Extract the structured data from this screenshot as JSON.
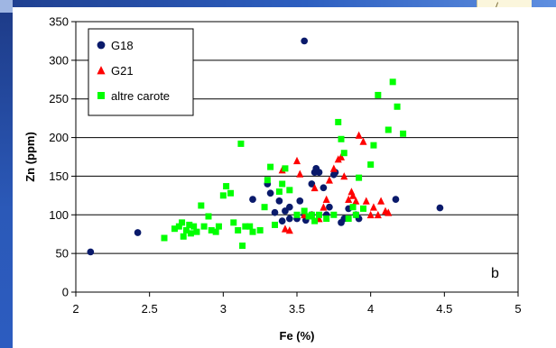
{
  "chart_data": {
    "type": "scatter",
    "xlabel": "Fe (%)",
    "ylabel": "Zn (ppm)",
    "xlim": [
      2,
      5
    ],
    "ylim": [
      0,
      350
    ],
    "xticks": [
      "2",
      "2.5",
      "3",
      "3.5",
      "4",
      "4.5",
      "5"
    ],
    "yticks": [
      "0",
      "50",
      "100",
      "150",
      "200",
      "250",
      "300",
      "350"
    ],
    "grid": "horizontal",
    "legend": "top-left",
    "annotation": "b",
    "series": [
      {
        "name": "G18",
        "marker": "circle",
        "color": "#0a1a6b",
        "points": [
          [
            2.1,
            52
          ],
          [
            2.42,
            77
          ],
          [
            3.55,
            325
          ],
          [
            3.2,
            120
          ],
          [
            3.3,
            140
          ],
          [
            3.32,
            128
          ],
          [
            3.35,
            103
          ],
          [
            3.38,
            118
          ],
          [
            3.4,
            92
          ],
          [
            3.42,
            105
          ],
          [
            3.45,
            110
          ],
          [
            3.45,
            95
          ],
          [
            3.5,
            95
          ],
          [
            3.52,
            118
          ],
          [
            3.55,
            100
          ],
          [
            3.56,
            93
          ],
          [
            3.6,
            140
          ],
          [
            3.6,
            100
          ],
          [
            3.62,
            155
          ],
          [
            3.63,
            160
          ],
          [
            3.65,
            155
          ],
          [
            3.68,
            135
          ],
          [
            3.7,
            100
          ],
          [
            3.72,
            110
          ],
          [
            3.75,
            152
          ],
          [
            3.76,
            155
          ],
          [
            3.8,
            90
          ],
          [
            3.82,
            95
          ],
          [
            3.85,
            108
          ],
          [
            3.9,
            100
          ],
          [
            3.92,
            95
          ],
          [
            4.17,
            120
          ],
          [
            4.47,
            109
          ]
        ]
      },
      {
        "name": "G21",
        "marker": "triangle",
        "color": "#ff0000",
        "points": [
          [
            3.4,
            158
          ],
          [
            3.42,
            82
          ],
          [
            3.45,
            80
          ],
          [
            3.5,
            170
          ],
          [
            3.52,
            153
          ],
          [
            3.55,
            100
          ],
          [
            3.6,
            100
          ],
          [
            3.62,
            135
          ],
          [
            3.65,
            95
          ],
          [
            3.68,
            110
          ],
          [
            3.7,
            120
          ],
          [
            3.72,
            145
          ],
          [
            3.75,
            160
          ],
          [
            3.78,
            172
          ],
          [
            3.8,
            175
          ],
          [
            3.82,
            150
          ],
          [
            3.85,
            120
          ],
          [
            3.87,
            130
          ],
          [
            3.88,
            125
          ],
          [
            3.9,
            118
          ],
          [
            3.92,
            203
          ],
          [
            3.95,
            195
          ],
          [
            3.97,
            118
          ],
          [
            4.0,
            100
          ],
          [
            4.02,
            110
          ],
          [
            4.05,
            100
          ],
          [
            4.07,
            118
          ],
          [
            4.1,
            105
          ],
          [
            4.12,
            103
          ]
        ]
      },
      {
        "name": "altre carote",
        "marker": "square",
        "color": "#00ff00",
        "points": [
          [
            2.6,
            70
          ],
          [
            2.67,
            82
          ],
          [
            2.7,
            85
          ],
          [
            2.72,
            90
          ],
          [
            2.73,
            72
          ],
          [
            2.75,
            80
          ],
          [
            2.77,
            87
          ],
          [
            2.78,
            76
          ],
          [
            2.8,
            85
          ],
          [
            2.82,
            78
          ],
          [
            2.85,
            112
          ],
          [
            2.87,
            85
          ],
          [
            2.9,
            98
          ],
          [
            2.92,
            80
          ],
          [
            2.95,
            78
          ],
          [
            2.97,
            85
          ],
          [
            3.0,
            125
          ],
          [
            3.02,
            137
          ],
          [
            3.05,
            128
          ],
          [
            3.07,
            90
          ],
          [
            3.1,
            80
          ],
          [
            3.12,
            192
          ],
          [
            3.13,
            60
          ],
          [
            3.15,
            85
          ],
          [
            3.18,
            85
          ],
          [
            3.2,
            78
          ],
          [
            3.25,
            80
          ],
          [
            3.28,
            110
          ],
          [
            3.3,
            145
          ],
          [
            3.32,
            162
          ],
          [
            3.35,
            87
          ],
          [
            3.38,
            130
          ],
          [
            3.4,
            140
          ],
          [
            3.42,
            160
          ],
          [
            3.45,
            132
          ],
          [
            3.5,
            100
          ],
          [
            3.55,
            105
          ],
          [
            3.58,
            98
          ],
          [
            3.6,
            100
          ],
          [
            3.62,
            92
          ],
          [
            3.65,
            100
          ],
          [
            3.7,
            95
          ],
          [
            3.75,
            100
          ],
          [
            3.78,
            220
          ],
          [
            3.8,
            198
          ],
          [
            3.82,
            180
          ],
          [
            3.85,
            95
          ],
          [
            3.88,
            110
          ],
          [
            3.9,
            100
          ],
          [
            3.92,
            148
          ],
          [
            3.95,
            108
          ],
          [
            4.0,
            165
          ],
          [
            4.02,
            190
          ],
          [
            4.05,
            255
          ],
          [
            4.12,
            210
          ],
          [
            4.15,
            272
          ],
          [
            4.18,
            240
          ],
          [
            4.22,
            205
          ]
        ]
      }
    ]
  }
}
